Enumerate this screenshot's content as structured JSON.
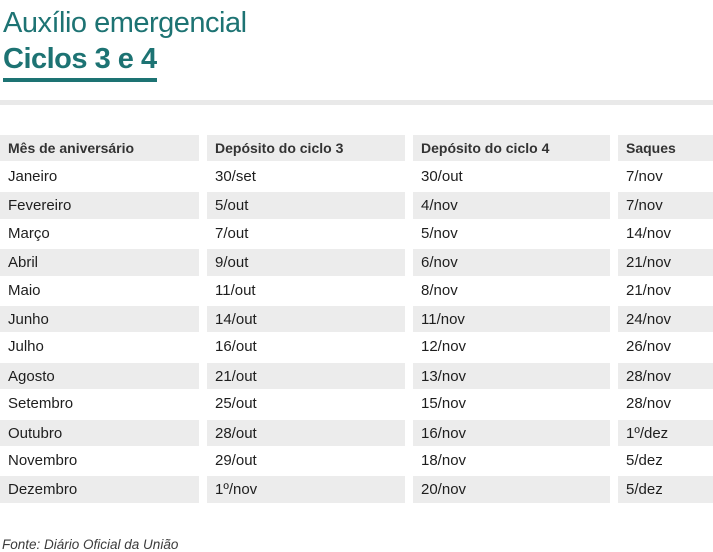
{
  "title": {
    "line1": "Auxílio emergencial",
    "line2": "Ciclos 3 e 4"
  },
  "table": {
    "columns": {
      "month": "Mês de aniversário",
      "cycle3": "Depósito do ciclo 3",
      "cycle4": "Depósito do ciclo 4",
      "withdrawals": "Saques"
    },
    "rows": [
      {
        "month": "Janeiro",
        "cycle3": "30/set",
        "cycle4": "30/out",
        "withdrawal": "7/nov"
      },
      {
        "month": "Fevereiro",
        "cycle3": "5/out",
        "cycle4": "4/nov",
        "withdrawal": "7/nov"
      },
      {
        "month": "Março",
        "cycle3": "7/out",
        "cycle4": "5/nov",
        "withdrawal": "14/nov"
      },
      {
        "month": "Abril",
        "cycle3": "9/out",
        "cycle4": "6/nov",
        "withdrawal": "21/nov"
      },
      {
        "month": "Maio",
        "cycle3": "11/out",
        "cycle4": "8/nov",
        "withdrawal": "21/nov"
      },
      {
        "month": "Junho",
        "cycle3": "14/out",
        "cycle4": "11/nov",
        "withdrawal": "24/nov"
      },
      {
        "month": "Julho",
        "cycle3": "16/out",
        "cycle4": "12/nov",
        "withdrawal": "26/nov"
      },
      {
        "month": "Agosto",
        "cycle3": "21/out",
        "cycle4": "13/nov",
        "withdrawal": "28/nov"
      },
      {
        "month": "Setembro",
        "cycle3": "25/out",
        "cycle4": "15/nov",
        "withdrawal": "28/nov"
      },
      {
        "month": "Outubro",
        "cycle3": "28/out",
        "cycle4": "16/nov",
        "withdrawal": "1º/dez"
      },
      {
        "month": "Novembro",
        "cycle3": "29/out",
        "cycle4": "18/nov",
        "withdrawal": "5/dez"
      },
      {
        "month": "Dezembro",
        "cycle3": "1º/nov",
        "cycle4": "20/nov",
        "withdrawal": "5/dez"
      }
    ]
  },
  "source": "Fonte: Diário Oficial da União",
  "colors": {
    "accent_teal": "#1d7373",
    "header_bg": "#ececec",
    "row_alt_bg": "#ececec",
    "divider": "#e9e9e9",
    "text_dark": "#1e1e1e"
  }
}
